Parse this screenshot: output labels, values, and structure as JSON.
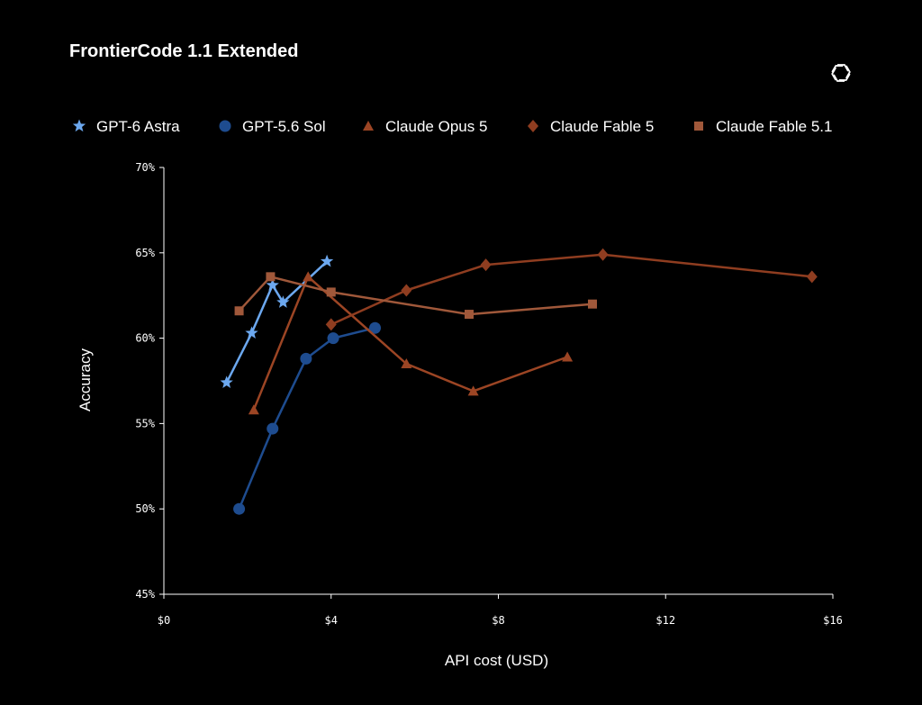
{
  "chart_data": {
    "type": "line",
    "title": "FrontierCode 1.1 Extended",
    "xlabel": "API cost (USD)",
    "ylabel": "Accuracy",
    "xlim": [
      0,
      16
    ],
    "ylim": [
      45,
      70
    ],
    "x_ticks": [
      0,
      4,
      8,
      12,
      16
    ],
    "x_tick_labels": [
      "$0",
      "$4",
      "$8",
      "$12",
      "$16"
    ],
    "y_ticks": [
      45,
      50,
      55,
      60,
      65,
      70
    ],
    "y_tick_labels": [
      "45%",
      "50%",
      "55%",
      "60%",
      "65%",
      "70%"
    ],
    "grid": false,
    "legend_position": "top",
    "series": [
      {
        "name": "GPT-6 Astra",
        "marker": "star",
        "color": "#6CA8EF",
        "x": [
          1.5,
          2.1,
          2.6,
          2.85,
          3.9
        ],
        "y": [
          57.4,
          60.3,
          63.1,
          62.1,
          64.5
        ]
      },
      {
        "name": "GPT-5.6 Sol",
        "marker": "circle",
        "color": "#1E4C8F",
        "x": [
          1.8,
          2.6,
          3.4,
          4.05,
          5.05
        ],
        "y": [
          50.0,
          54.7,
          58.8,
          60.0,
          60.6
        ]
      },
      {
        "name": "Claude Opus 5",
        "marker": "triangle",
        "color": "#9C4524",
        "x": [
          2.15,
          3.45,
          5.8,
          7.4,
          9.65
        ],
        "y": [
          55.8,
          63.6,
          58.5,
          56.9,
          58.9
        ]
      },
      {
        "name": "Claude Fable 5",
        "marker": "diamond",
        "color": "#8F3D20",
        "x": [
          4.0,
          5.8,
          7.7,
          10.5,
          15.5
        ],
        "y": [
          60.8,
          62.8,
          64.3,
          64.9,
          63.6
        ]
      },
      {
        "name": "Claude Fable 5.1",
        "marker": "square",
        "color": "#A0583A",
        "x": [
          1.8,
          2.55,
          4.0,
          7.3,
          10.25
        ],
        "y": [
          61.6,
          63.6,
          62.7,
          61.4,
          62.0
        ]
      }
    ]
  },
  "logo": {
    "name": "openai-logo"
  }
}
